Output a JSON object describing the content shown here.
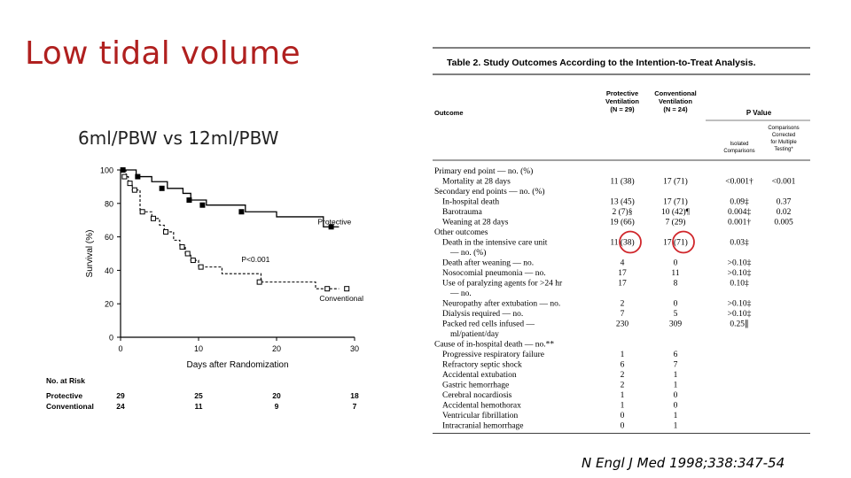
{
  "slide": {
    "title": "Low tidal volume",
    "subtitle": "6ml/PBW vs 12ml/PBW",
    "citation": "N Engl J Med 1998;338:347-54"
  },
  "chart_data": {
    "type": "line",
    "ylabel": "Survival (%)",
    "xlabel": "Days after Randomization",
    "xlim": [
      0,
      30
    ],
    "ylim": [
      0,
      100
    ],
    "x_ticks": [
      "0",
      "10",
      "20",
      "30"
    ],
    "y_ticks": [
      "0",
      "20",
      "40",
      "60",
      "80",
      "100"
    ],
    "p_value_label": "P<0.001",
    "series": [
      {
        "name": "Protective",
        "steps": [
          [
            0,
            100
          ],
          [
            1,
            100
          ],
          [
            2,
            96
          ],
          [
            4,
            93
          ],
          [
            6,
            89
          ],
          [
            8,
            86
          ],
          [
            9,
            82
          ],
          [
            11,
            79
          ],
          [
            16,
            75
          ],
          [
            20,
            72
          ],
          [
            26,
            66
          ],
          [
            28,
            66
          ]
        ],
        "censored": [
          [
            0.3,
            100
          ],
          [
            2.2,
            96
          ],
          [
            5.3,
            89
          ],
          [
            8.8,
            82
          ],
          [
            10.5,
            79
          ],
          [
            15.5,
            75
          ],
          [
            27,
            66
          ]
        ]
      },
      {
        "name": "Conventional",
        "steps": [
          [
            0,
            100
          ],
          [
            0.7,
            96
          ],
          [
            1,
            92
          ],
          [
            1.5,
            88
          ],
          [
            2.5,
            75
          ],
          [
            4,
            71
          ],
          [
            5,
            67
          ],
          [
            5.6,
            63
          ],
          [
            6.8,
            58
          ],
          [
            7.6,
            54
          ],
          [
            8.3,
            50
          ],
          [
            9,
            46
          ],
          [
            10,
            42
          ],
          [
            13,
            38
          ],
          [
            18,
            33
          ],
          [
            25,
            29
          ],
          [
            28,
            29
          ]
        ],
        "censored": [
          [
            0.5,
            96
          ],
          [
            1.2,
            92
          ],
          [
            1.8,
            88
          ],
          [
            2.8,
            75
          ],
          [
            4.2,
            71
          ],
          [
            5.8,
            63
          ],
          [
            7.9,
            54
          ],
          [
            8.6,
            50
          ],
          [
            9.3,
            46
          ],
          [
            10.3,
            42
          ],
          [
            17.8,
            33
          ],
          [
            26.5,
            29
          ],
          [
            29,
            29
          ]
        ]
      }
    ],
    "number_at_risk": {
      "title": "No. at Risk",
      "rows": [
        {
          "label": "Protective",
          "values": [
            "29",
            "25",
            "20",
            "18"
          ]
        },
        {
          "label": "Conventional",
          "values": [
            "24",
            "11",
            "9",
            "7"
          ]
        }
      ]
    }
  },
  "table": {
    "caption": "Table 2. Study Outcomes According to the Intention-to-Treat Analysis.",
    "headers": {
      "outcome": "Outcome",
      "protective": [
        "Protective",
        "Ventilation",
        "(N = 29)"
      ],
      "conventional": [
        "Conventional",
        "Ventilation",
        "(N = 24)"
      ],
      "p_value": "P Value",
      "isolated": [
        "Isolated",
        "Comparisons"
      ],
      "corrected": [
        "Comparisons",
        "Corrected",
        "for Multiple",
        "Testing*"
      ]
    },
    "rows": [
      {
        "label": "Primary end point — no. (%)",
        "p": "",
        "c": "",
        "iso": "",
        "cor": ""
      },
      {
        "label": "   Mortality at 28 days",
        "p": "11 (38)",
        "c": "17 (71)",
        "iso": "<0.001†",
        "cor": "<0.001"
      },
      {
        "label": "Secondary end points — no. (%)",
        "p": "",
        "c": "",
        "iso": "",
        "cor": ""
      },
      {
        "label": "   In-hospital death",
        "p": "13 (45)",
        "c": "17 (71)",
        "iso": "0.09‡",
        "cor": "0.37"
      },
      {
        "label": "   Barotrauma",
        "p": "2 (7)§",
        "c": "10 (42)¶",
        "iso": "0.004‡",
        "cor": "0.02"
      },
      {
        "label": "   Weaning at 28 days",
        "p": "19 (66)",
        "c": "7 (29)",
        "iso": "0.001†",
        "cor": "0.005"
      },
      {
        "label": "Other outcomes",
        "p": "",
        "c": "",
        "iso": "",
        "cor": ""
      },
      {
        "label": "   Death in the intensive care unit",
        "p": "11 (38)",
        "c": "17 (71)",
        "iso": "0.03‡",
        "cor": ""
      },
      {
        "label": "      — no. (%)",
        "p": "",
        "c": "",
        "iso": "",
        "cor": ""
      },
      {
        "label": "   Death after weaning — no.",
        "p": "4",
        "c": "0",
        "iso": ">0.10‡",
        "cor": ""
      },
      {
        "label": "   Nosocomial pneumonia — no.",
        "p": "17",
        "c": "11",
        "iso": ">0.10‡",
        "cor": ""
      },
      {
        "label": "   Use of paralyzing agents for >24 hr",
        "p": "17",
        "c": "8",
        "iso": "0.10‡",
        "cor": ""
      },
      {
        "label": "      — no.",
        "p": "",
        "c": "",
        "iso": "",
        "cor": ""
      },
      {
        "label": "   Neuropathy after extubation — no.",
        "p": "2",
        "c": "0",
        "iso": ">0.10‡",
        "cor": ""
      },
      {
        "label": "   Dialysis required — no.",
        "p": "7",
        "c": "5",
        "iso": ">0.10‡",
        "cor": ""
      },
      {
        "label": "   Packed red cells infused —",
        "p": "230",
        "c": "309",
        "iso": "0.25∥",
        "cor": ""
      },
      {
        "label": "      ml/patient/day",
        "p": "",
        "c": "",
        "iso": "",
        "cor": ""
      },
      {
        "label": "Cause of in-hospital death — no.**",
        "p": "",
        "c": "",
        "iso": "",
        "cor": ""
      },
      {
        "label": "   Progressive respiratory failure",
        "p": "1",
        "c": "6",
        "iso": "",
        "cor": ""
      },
      {
        "label": "   Refractory septic shock",
        "p": "6",
        "c": "7",
        "iso": "",
        "cor": ""
      },
      {
        "label": "   Accidental extubation",
        "p": "2",
        "c": "1",
        "iso": "",
        "cor": ""
      },
      {
        "label": "   Gastric hemorrhage",
        "p": "2",
        "c": "1",
        "iso": "",
        "cor": ""
      },
      {
        "label": "   Cerebral nocardiosis",
        "p": "1",
        "c": "0",
        "iso": "",
        "cor": ""
      },
      {
        "label": "   Accidental hemothorax",
        "p": "1",
        "c": "0",
        "iso": "",
        "cor": ""
      },
      {
        "label": "   Ventricular fibrillation",
        "p": "0",
        "c": "1",
        "iso": "",
        "cor": ""
      },
      {
        "label": "   Intracranial hemorrhage",
        "p": "0",
        "c": "1",
        "iso": "",
        "cor": ""
      }
    ],
    "highlight_row": 7,
    "highlight_color": "#d0262b"
  }
}
